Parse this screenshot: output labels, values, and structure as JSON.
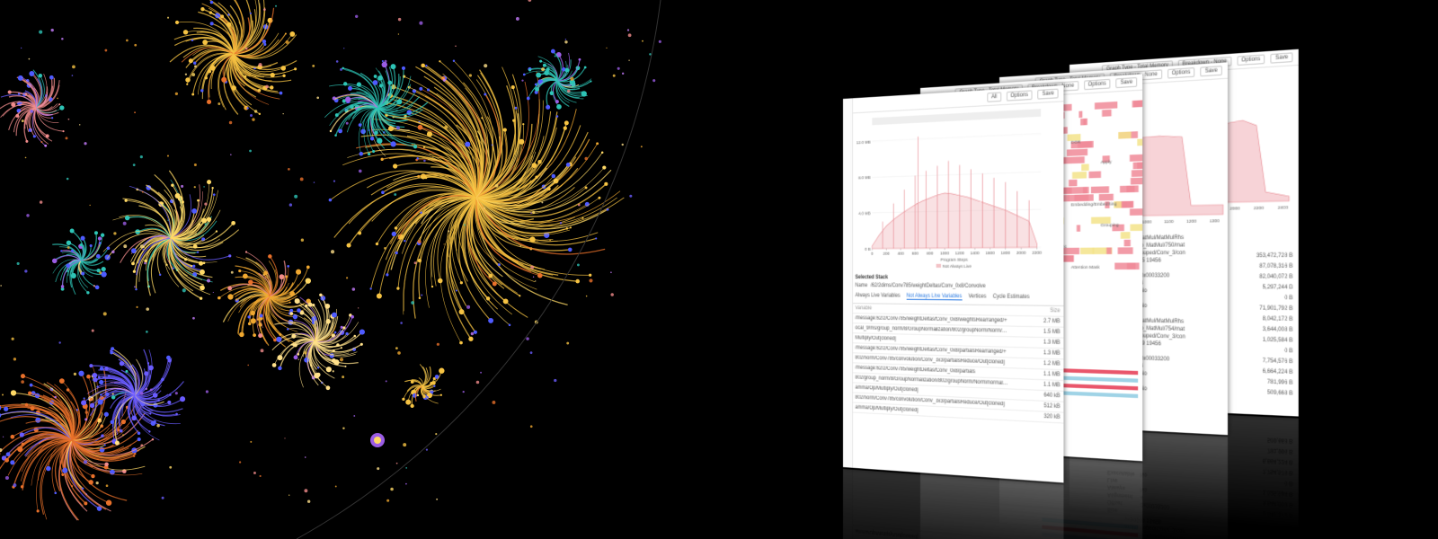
{
  "panels": [
    {
      "toolbar": [
        "All",
        "Options",
        "Save"
      ],
      "chart": {
        "type": "area",
        "x_label": "Program Steps",
        "legend": "Not Always Live",
        "color": "#e8878f",
        "x": [
          0,
          100,
          200,
          300,
          400,
          500,
          600,
          700,
          800,
          900,
          1000,
          1100,
          1200,
          1300,
          1400,
          1500,
          1600,
          1700,
          1800,
          1900,
          2000,
          2100,
          2200
        ],
        "values": [
          0.3,
          1.5,
          2.5,
          3.2,
          3.8,
          4.3,
          4.8,
          5.2,
          5.5,
          5.8,
          6.0,
          5.9,
          5.7,
          5.5,
          5.2,
          4.9,
          4.6,
          4.3,
          4.0,
          3.6,
          3.2,
          2.8,
          0.4
        ],
        "spikes": {
          "x": [
            150,
            300,
            450,
            600,
            640,
            750,
            900,
            1050,
            1200,
            1350,
            1500,
            1650,
            1800,
            1950,
            2100
          ],
          "values": [
            3,
            5,
            6.5,
            8,
            12.3,
            8.5,
            9,
            9.5,
            9,
            8.5,
            8,
            7.5,
            7,
            6,
            5
          ]
        },
        "xlim": [
          0,
          2250
        ],
        "ylim": [
          0,
          13
        ],
        "xticks": [
          0,
          200,
          400,
          600,
          800,
          1000,
          1200,
          1400,
          1600,
          1800,
          2000,
          2200
        ],
        "yticks": [
          {
            "value": 0,
            "label": "0 B"
          },
          {
            "value": 4,
            "label": "4.0 MB"
          },
          {
            "value": 8,
            "label": "8.0 MB"
          },
          {
            "value": 12,
            "label": "12.0 MB"
          }
        ]
      },
      "selected_stack": "Selected Stack",
      "name_label": "Name",
      "name_value": "/62/2dims/Conv785/weightDeltas/Conv_0x8/Convolve",
      "tabs": [
        "Always Live Variables",
        "Not Always Live Variables",
        "Vertices",
        "Cycle Estimates"
      ],
      "table": {
        "header": [
          "Variable",
          "Size"
        ],
        "rows": [
          [
            "/message:62/2/Conv785/weightDeltas/Conv_0x8/weightsRearranged/+",
            "2.7 MB"
          ],
          [
            "ocal_9/ms/group_norm/8/GroupNormalization/802/groupNorm/Norm/normalize/gamma/Op/",
            "1.5 MB"
          ],
          [
            "Multiply/Out[cloned]",
            "1.3 MB"
          ],
          [
            "/message:62/2/Conv785/weightDeltas/Conv_0x8/partialsRearranged/+",
            "1.3 MB"
          ],
          [
            "802/norm/Conv785/convolution/Conv_3x3/partialsReduce/Out[cloned]",
            "1.2 MB"
          ],
          [
            "/message:62/2/Conv785/weightDeltas/Conv_0x8/partials",
            "1.1 MB"
          ],
          [
            "802/group_norm/8/GroupNormalization/802/groupNorm/Norm/normalize/g",
            "1.1 MB"
          ],
          [
            "amma/Op/Multiply/Out[cloned]",
            "640 kB"
          ],
          [
            "802/norm/Conv785/convolution/Conv_3x3/partialsReduce/Out[cloned]",
            "512 kB"
          ],
          [
            "amma/Op/Multiply/Out[cloned]",
            "320 kB"
          ]
        ]
      }
    },
    {
      "toolbar": [
        "Graph Type - Total Memory",
        "Breakdown - None",
        "Options",
        "Save"
      ],
      "flame_labels": [
        "MLM",
        "DOR",
        "Apply",
        "Softmax",
        "Embedding/EmbedSing",
        "Grouping",
        "Internal Sync",
        "Attention Mask"
      ]
    },
    {
      "toolbar": [
        "Graph Type - Total Memory",
        "Breakdown - None",
        "Options",
        "Save"
      ],
      "axis_labels": [
        "900",
        "1000",
        "1100",
        "1200",
        "1300"
      ],
      "details": [
        {
          "name_label": "Name",
          "name": "MLM/MatMul/MatMulRhsGradOp_MatMul/750/matmul/Grouped/Conv_3/conv#99905 19456",
          "fields": [
            [
              "Size",
              ""
            ],
            [
              "Offset",
              "0x00033200"
            ],
            [
              "Alignment",
              "4"
            ],
            [
              "Always Live",
              "No"
            ],
            [
              "Executable",
              "No"
            ]
          ]
        },
        {
          "name_label": "Name",
          "name": "MLM/MatMul/MatMulRhsGradOp_MatMul/754/matmul/Grouped/Conv_3/conv#99999 19456",
          "fields": [
            [
              "Size",
              ""
            ],
            [
              "Offset",
              "0x00033200"
            ],
            [
              "Alignment",
              "4"
            ],
            [
              "Always Live",
              "No"
            ],
            [
              "Executable",
              "No"
            ]
          ]
        }
      ]
    },
    {
      "toolbar": [
        "Graph Type - Total Memory",
        "Breakdown - None",
        "Options",
        "Save"
      ],
      "axis_labels": [
        "1900",
        "2000",
        "2200",
        "2400"
      ],
      "amounts": [
        "353,472,728 B",
        "87,078,316 B",
        "82,040,072 B",
        "5,297,244 B",
        "0 B",
        "71,901,792 B",
        "8,042,172 B",
        "3,644,008 B",
        "1,025,584 B",
        "0 B",
        "7,754,576 B",
        "6,664,224 B",
        "781,996 B",
        "509,668 B"
      ]
    }
  ]
}
